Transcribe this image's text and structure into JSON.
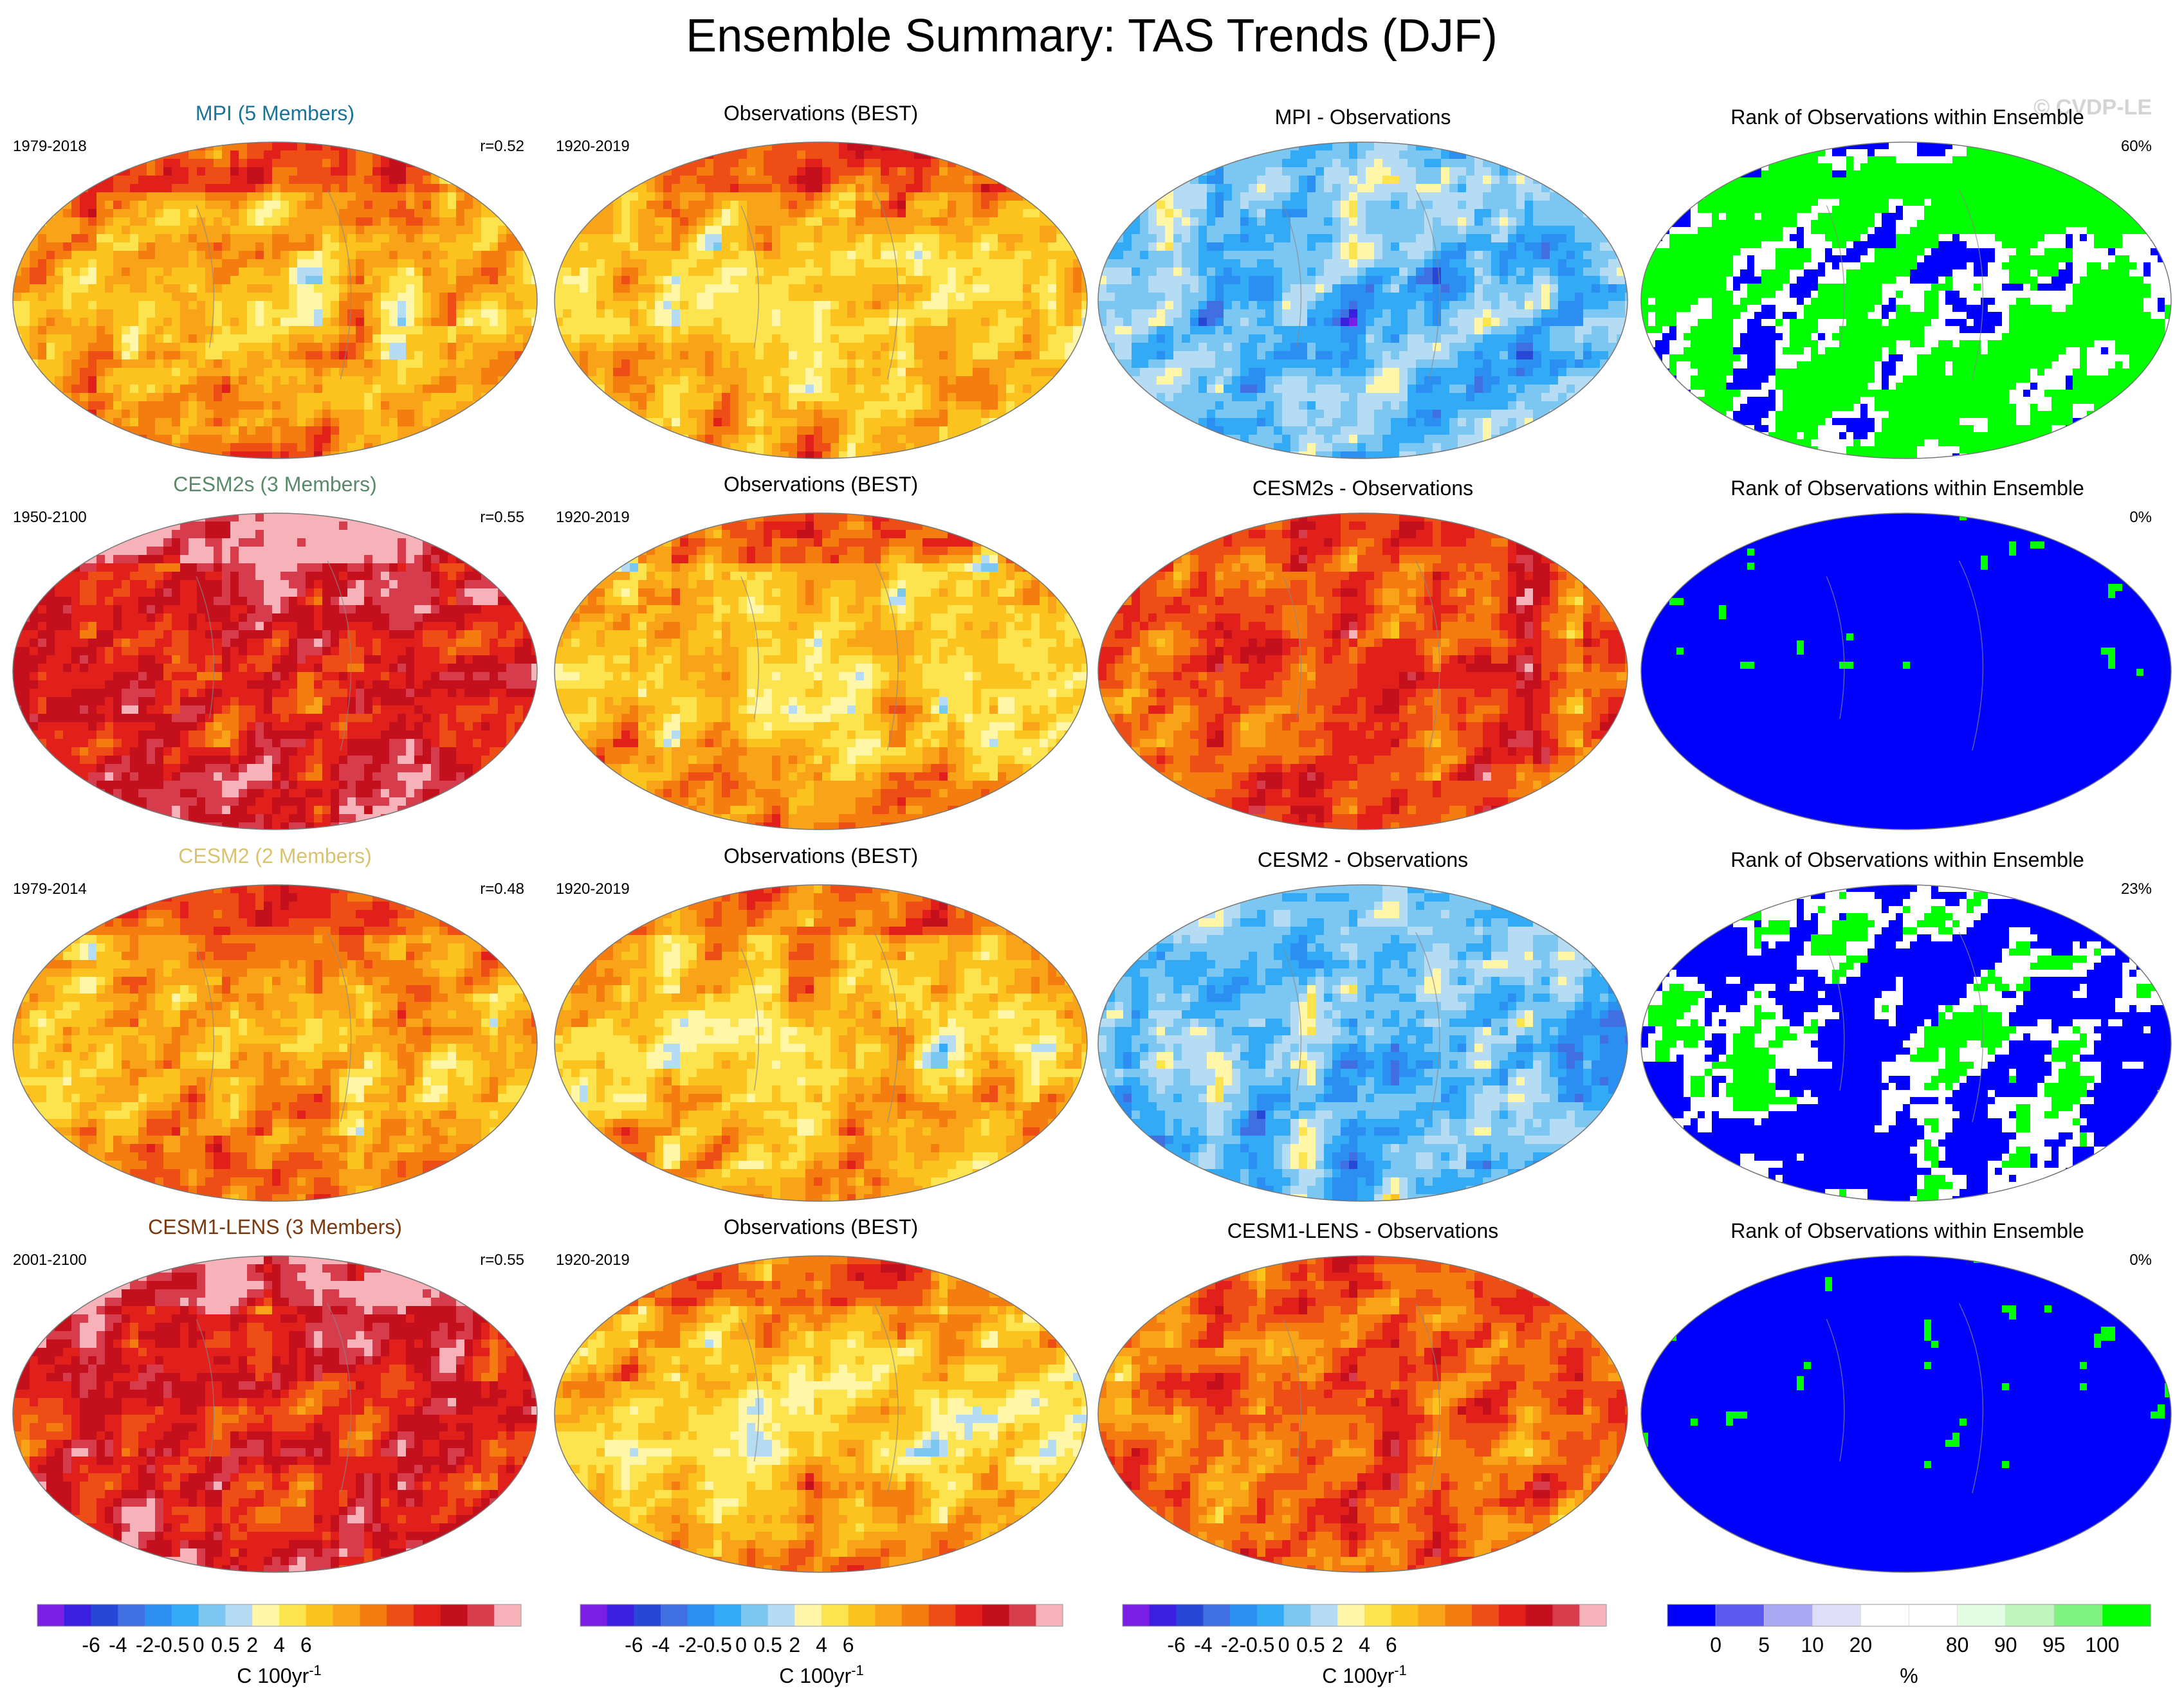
{
  "title": "Ensemble Summary: TAS Trends (DJF)",
  "watermark": "© CVDP-LE",
  "palette": {
    "trend": [
      "#7a1ee6",
      "#3a1fe0",
      "#2747d6",
      "#3f6fe0",
      "#2a8ff0",
      "#33aaf5",
      "#7cc6f2",
      "#b5dcf3",
      "#fff6a8",
      "#fde44f",
      "#fcc21d",
      "#f9a318",
      "#f57d10",
      "#ee4e16",
      "#e2201b",
      "#c4101c",
      "#d63c4c",
      "#f6b2b8"
    ],
    "rank": [
      "#0000ff",
      "#5a5af0",
      "#a8a8f4",
      "#dedef9",
      "#ffffff",
      "#ffffff",
      "#e2fde2",
      "#bff5bf",
      "#7ff27f",
      "#00ff00"
    ]
  },
  "rows": [
    {
      "model": {
        "label": "MPI (5 Members)",
        "color": "#1b7398",
        "years": "1979-2018",
        "r": "r=0.52"
      },
      "obs": {
        "label": "Observations (BEST)",
        "years": "1920-2019"
      },
      "diff": {
        "label": "MPI - Observations"
      },
      "rank": {
        "label": "Rank of Observations within Ensemble",
        "pct": "60%"
      },
      "level": {
        "model": 0.58,
        "obs": 0.55,
        "diff": 0.35,
        "rank": 0.6
      }
    },
    {
      "model": {
        "label": "CESM2s (3 Members)",
        "color": "#5a8a6a",
        "years": "1950-2100",
        "r": "r=0.55"
      },
      "obs": {
        "label": "Observations (BEST)",
        "years": "1920-2019"
      },
      "diff": {
        "label": "CESM2s - Observations"
      },
      "rank": {
        "label": "Rank of Observations within Ensemble",
        "pct": "0%"
      },
      "level": {
        "model": 0.82,
        "obs": 0.55,
        "diff": 0.78,
        "rank": 0.0
      }
    },
    {
      "model": {
        "label": "CESM2 (2 Members)",
        "color": "#d9c270",
        "years": "1979-2014",
        "r": "r=0.48"
      },
      "obs": {
        "label": "Observations (BEST)",
        "years": "1920-2019"
      },
      "diff": {
        "label": "CESM2 - Observations"
      },
      "rank": {
        "label": "Rank of Observations within Ensemble",
        "pct": "23%"
      },
      "level": {
        "model": 0.6,
        "obs": 0.55,
        "diff": 0.33,
        "rank": 0.23
      }
    },
    {
      "model": {
        "label": "CESM1-LENS (3 Members)",
        "color": "#7a3a10",
        "years": "2001-2100",
        "r": "r=0.55"
      },
      "obs": {
        "label": "Observations (BEST)",
        "years": "1920-2019"
      },
      "diff": {
        "label": "CESM1-LENS - Observations"
      },
      "rank": {
        "label": "Rank of Observations within Ensemble",
        "pct": "0%"
      },
      "level": {
        "model": 0.8,
        "obs": 0.55,
        "diff": 0.75,
        "rank": 0.0
      }
    }
  ],
  "colorbars": [
    {
      "type": "trend",
      "ticks": [
        "-6",
        "-4",
        "-2",
        "-0.5",
        "0",
        "0.5",
        "2",
        "4",
        "6"
      ],
      "unit": "C 100yr",
      "unit_sup": "-1"
    },
    {
      "type": "trend",
      "ticks": [
        "-6",
        "-4",
        "-2",
        "-0.5",
        "0",
        "0.5",
        "2",
        "4",
        "6"
      ],
      "unit": "C 100yr",
      "unit_sup": "-1"
    },
    {
      "type": "trend",
      "ticks": [
        "-6",
        "-4",
        "-2",
        "-0.5",
        "0",
        "0.5",
        "2",
        "4",
        "6"
      ],
      "unit": "C 100yr",
      "unit_sup": "-1"
    },
    {
      "type": "rank",
      "ticks": [
        "0",
        "5",
        "10",
        "20",
        "80",
        "90",
        "95",
        "100"
      ],
      "unit": "%",
      "unit_sup": ""
    }
  ],
  "chart_data": {
    "type": "heatmap",
    "title": "Ensemble Summary: TAS Trends (DJF)",
    "panels_per_row": [
      "model trend",
      "Observations (BEST)",
      "model - Observations",
      "Rank of Observations within Ensemble"
    ],
    "rank_percent": {
      "MPI (5 Members)": 60,
      "CESM2s (3 Members)": 0,
      "CESM2 (2 Members)": 23,
      "CESM1-LENS (3 Members)": 0
    },
    "pattern_correlation": {
      "MPI (5 Members)": 0.52,
      "CESM2s (3 Members)": 0.55,
      "CESM2 (2 Members)": 0.48,
      "CESM1-LENS (3 Members)": 0.55
    },
    "trend_colorbar_levels": [
      -6,
      -4,
      -2,
      -0.5,
      0,
      0.5,
      2,
      4,
      6
    ],
    "trend_units": "C 100yr-1",
    "rank_colorbar_levels": [
      0,
      5,
      10,
      20,
      80,
      90,
      95,
      100
    ],
    "rank_units": "%"
  }
}
